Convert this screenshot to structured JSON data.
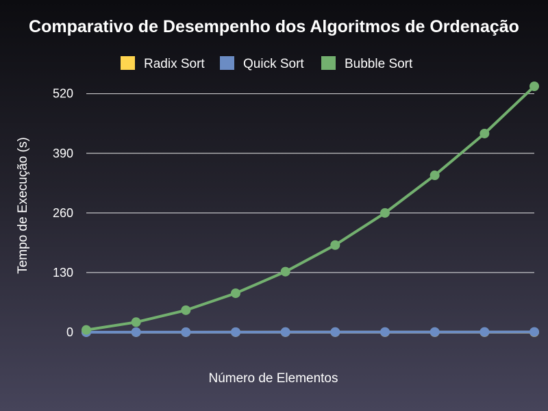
{
  "chart_data": {
    "type": "line",
    "title": "Comparativo de Desempenho dos Algoritmos de Ordenação",
    "xlabel": "Número de Elementos",
    "ylabel": "Tempo de Execução (s)",
    "ylim": [
      0,
      536
    ],
    "yticks": [
      0,
      130,
      260,
      390,
      520
    ],
    "grid": true,
    "legend_position": "top",
    "x": [
      1,
      2,
      3,
      4,
      5,
      6,
      7,
      8,
      9,
      10
    ],
    "series": [
      {
        "name": "Radix Sort",
        "color": "#ffd54f",
        "values": [
          0.02,
          0.04,
          0.06,
          0.08,
          0.1,
          0.12,
          0.14,
          0.16,
          0.18,
          0.2
        ]
      },
      {
        "name": "Quick Sort",
        "color": "#6b8cc4",
        "values": [
          0.05,
          0.1,
          0.16,
          0.22,
          0.28,
          0.34,
          0.4,
          0.46,
          0.52,
          0.58
        ]
      },
      {
        "name": "Bubble Sort",
        "color": "#73b06f",
        "values": [
          5,
          22,
          48,
          85,
          132,
          190,
          260,
          342,
          433,
          536
        ]
      }
    ]
  }
}
